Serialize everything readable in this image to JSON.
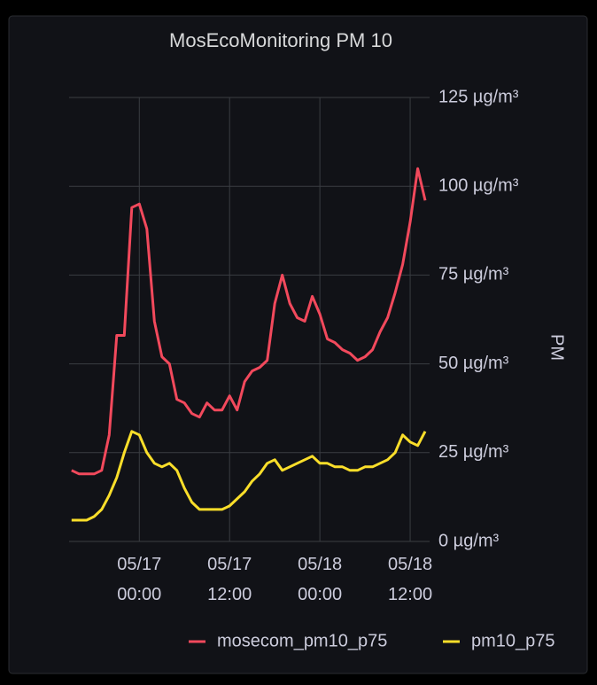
{
  "chart_data": {
    "type": "line",
    "title": "MosEcoMonitoring PM 10",
    "y_label": "PM",
    "x": [
      "05/16 15:00",
      "05/16 16:00",
      "05/16 17:00",
      "05/16 18:00",
      "05/16 19:00",
      "05/16 20:00",
      "05/16 21:00",
      "05/16 22:00",
      "05/16 23:00",
      "05/17 00:00",
      "05/17 01:00",
      "05/17 02:00",
      "05/17 03:00",
      "05/17 04:00",
      "05/17 05:00",
      "05/17 06:00",
      "05/17 07:00",
      "05/17 08:00",
      "05/17 09:00",
      "05/17 10:00",
      "05/17 11:00",
      "05/17 12:00",
      "05/17 13:00",
      "05/17 14:00",
      "05/17 15:00",
      "05/17 16:00",
      "05/17 17:00",
      "05/17 18:00",
      "05/17 19:00",
      "05/17 20:00",
      "05/17 21:00",
      "05/17 22:00",
      "05/17 23:00",
      "05/18 00:00",
      "05/18 01:00",
      "05/18 02:00",
      "05/18 03:00",
      "05/18 04:00",
      "05/18 05:00",
      "05/18 06:00",
      "05/18 07:00",
      "05/18 08:00",
      "05/18 09:00",
      "05/18 10:00",
      "05/18 11:00",
      "05/18 12:00",
      "05/18 13:00",
      "05/18 14:00"
    ],
    "series": [
      {
        "name": "mosecom_pm10_p75",
        "color": "#f2495c",
        "values": [
          20,
          19,
          19,
          19,
          20,
          30,
          58,
          58,
          94,
          95,
          88,
          62,
          52,
          50,
          40,
          39,
          36,
          35,
          39,
          37,
          37,
          41,
          37,
          45,
          48,
          49,
          51,
          67,
          75,
          67,
          63,
          62,
          69,
          64,
          57,
          56,
          54,
          53,
          51,
          52,
          54,
          59,
          63,
          70,
          78,
          90,
          105,
          96
        ]
      },
      {
        "name": "pm10_p75",
        "color": "#fade2a",
        "values": [
          6,
          6,
          6,
          7,
          9,
          13,
          18,
          25,
          31,
          30,
          25,
          22,
          21,
          22,
          20,
          15,
          11,
          9,
          9,
          9,
          9,
          10,
          12,
          14,
          17,
          19,
          22,
          23,
          20,
          21,
          22,
          23,
          24,
          22,
          22,
          21,
          21,
          20,
          20,
          21,
          21,
          22,
          23,
          25,
          30,
          28,
          27,
          31
        ]
      }
    ],
    "xlim": [
      "05/16 14:40",
      "05/18 14:35"
    ],
    "xticks": [
      "05/17 00:00",
      "05/17 12:00",
      "05/18 00:00",
      "05/18 12:00"
    ],
    "ylim": [
      0,
      125
    ],
    "yticks": [
      {
        "value": 0,
        "label": "0 µg/m³"
      },
      {
        "value": 25,
        "label": "25 µg/m³"
      },
      {
        "value": 50,
        "label": "50 µg/m³"
      },
      {
        "value": 75,
        "label": "75 µg/m³"
      },
      {
        "value": 100,
        "label": "100 µg/m³"
      },
      {
        "value": 125,
        "label": "125 µg/m³"
      }
    ],
    "grid": true,
    "legend": "bottom-right"
  }
}
